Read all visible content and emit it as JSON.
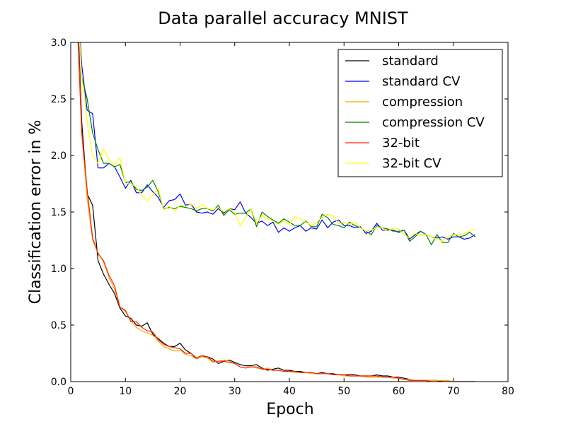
{
  "chart_data": {
    "type": "line",
    "title": "Data parallel accuracy MNIST",
    "xlabel": "Epoch",
    "ylabel": "Classification error in %",
    "xlim": [
      0,
      80
    ],
    "ylim": [
      0.0,
      3.0
    ],
    "xticks": [
      "0",
      "10",
      "20",
      "30",
      "40",
      "50",
      "60",
      "70",
      "80"
    ],
    "yticks": [
      "0.0",
      "0.5",
      "1.0",
      "1.5",
      "2.0",
      "2.5",
      "3.0"
    ],
    "grid": false,
    "legend_position": "top-right",
    "x": [
      1,
      2,
      3,
      4,
      5,
      6,
      7,
      8,
      9,
      10,
      11,
      12,
      13,
      14,
      15,
      16,
      17,
      18,
      19,
      20,
      21,
      22,
      23,
      24,
      25,
      26,
      27,
      28,
      29,
      30,
      31,
      32,
      33,
      34,
      35,
      36,
      37,
      38,
      39,
      40,
      41,
      42,
      43,
      44,
      45,
      46,
      47,
      48,
      49,
      50,
      51,
      52,
      53,
      54,
      55,
      56,
      57,
      58,
      59,
      60,
      61,
      62,
      63,
      64,
      65,
      66,
      67,
      68,
      69,
      70,
      71,
      72,
      73,
      74
    ],
    "series": [
      {
        "name": "standard",
        "color": "#000000",
        "values": [
          3.6,
          2.3,
          1.66,
          1.56,
          1.07,
          0.95,
          0.86,
          0.78,
          0.65,
          0.58,
          0.56,
          0.5,
          0.49,
          0.52,
          0.42,
          0.38,
          0.34,
          0.31,
          0.31,
          0.34,
          0.28,
          0.25,
          0.2,
          0.22,
          0.22,
          0.2,
          0.16,
          0.18,
          0.19,
          0.17,
          0.15,
          0.14,
          0.14,
          0.15,
          0.12,
          0.1,
          0.11,
          0.12,
          0.1,
          0.1,
          0.09,
          0.09,
          0.08,
          0.08,
          0.07,
          0.08,
          0.07,
          0.07,
          0.06,
          0.06,
          0.06,
          0.06,
          0.05,
          0.05,
          0.05,
          0.06,
          0.05,
          0.05,
          0.04,
          0.04,
          0.03,
          0.02,
          0.01,
          0.01,
          0.01,
          0.01,
          0.01,
          0.0,
          0.0,
          0.0,
          0.0,
          0.0,
          0.0,
          0.0
        ]
      },
      {
        "name": "standard CV",
        "color": "#0000ff",
        "values": [
          3.6,
          2.8,
          2.4,
          2.37,
          1.89,
          1.89,
          1.93,
          1.9,
          1.81,
          1.71,
          1.78,
          1.67,
          1.67,
          1.74,
          1.68,
          1.63,
          1.54,
          1.6,
          1.61,
          1.66,
          1.56,
          1.57,
          1.5,
          1.49,
          1.5,
          1.48,
          1.53,
          1.49,
          1.53,
          1.52,
          1.59,
          1.49,
          1.45,
          1.4,
          1.42,
          1.38,
          1.41,
          1.32,
          1.36,
          1.33,
          1.36,
          1.38,
          1.33,
          1.36,
          1.35,
          1.43,
          1.36,
          1.41,
          1.43,
          1.38,
          1.38,
          1.36,
          1.37,
          1.31,
          1.33,
          1.4,
          1.34,
          1.34,
          1.34,
          1.32,
          1.34,
          1.26,
          1.3,
          1.33,
          1.3,
          1.28,
          1.27,
          1.28,
          1.26,
          1.28,
          1.28,
          1.26,
          1.27,
          1.3
        ]
      },
      {
        "name": "compression",
        "color": "#ffa500",
        "values": [
          3.5,
          2.2,
          1.62,
          1.25,
          1.14,
          1.06,
          0.92,
          0.82,
          0.66,
          0.62,
          0.54,
          0.48,
          0.45,
          0.43,
          0.41,
          0.36,
          0.31,
          0.29,
          0.27,
          0.28,
          0.24,
          0.23,
          0.2,
          0.22,
          0.21,
          0.17,
          0.18,
          0.19,
          0.18,
          0.16,
          0.13,
          0.12,
          0.13,
          0.12,
          0.11,
          0.12,
          0.1,
          0.1,
          0.09,
          0.09,
          0.08,
          0.08,
          0.08,
          0.07,
          0.07,
          0.07,
          0.07,
          0.06,
          0.06,
          0.05,
          0.05,
          0.05,
          0.05,
          0.04,
          0.04,
          0.04,
          0.04,
          0.04,
          0.03,
          0.03,
          0.02,
          0.02,
          0.01,
          0.01,
          0.01,
          0.01,
          0.01,
          0.01,
          0.01,
          0.0,
          0.0,
          0.0,
          0.0,
          0.0
        ]
      },
      {
        "name": "compression CV",
        "color": "#008000",
        "values": [
          3.6,
          2.7,
          2.5,
          2.2,
          2.05,
          1.93,
          1.93,
          1.9,
          1.92,
          1.76,
          1.77,
          1.7,
          1.69,
          1.72,
          1.78,
          1.68,
          1.53,
          1.54,
          1.53,
          1.55,
          1.54,
          1.53,
          1.51,
          1.53,
          1.53,
          1.51,
          1.56,
          1.47,
          1.52,
          1.48,
          1.49,
          1.49,
          1.53,
          1.37,
          1.5,
          1.46,
          1.43,
          1.4,
          1.44,
          1.41,
          1.38,
          1.38,
          1.42,
          1.37,
          1.37,
          1.48,
          1.45,
          1.39,
          1.38,
          1.36,
          1.41,
          1.38,
          1.36,
          1.33,
          1.3,
          1.38,
          1.36,
          1.35,
          1.33,
          1.33,
          1.34,
          1.24,
          1.28,
          1.33,
          1.3,
          1.21,
          1.3,
          1.23,
          1.23,
          1.31,
          1.28,
          1.29,
          1.32,
          1.28
        ]
      },
      {
        "name": "32-bit",
        "color": "#ff2200",
        "values": [
          3.4,
          2.2,
          1.7,
          1.27,
          1.13,
          1.07,
          0.94,
          0.85,
          0.66,
          0.63,
          0.53,
          0.53,
          0.48,
          0.45,
          0.44,
          0.37,
          0.33,
          0.31,
          0.3,
          0.29,
          0.25,
          0.25,
          0.21,
          0.23,
          0.22,
          0.18,
          0.18,
          0.18,
          0.17,
          0.16,
          0.13,
          0.12,
          0.13,
          0.13,
          0.11,
          0.11,
          0.1,
          0.1,
          0.09,
          0.09,
          0.09,
          0.08,
          0.08,
          0.08,
          0.07,
          0.07,
          0.07,
          0.06,
          0.06,
          0.06,
          0.05,
          0.05,
          0.05,
          0.05,
          0.05,
          0.05,
          0.04,
          0.04,
          0.04,
          0.03,
          0.02,
          0.01,
          0.01,
          0.01,
          0.01,
          0.0,
          0.0,
          0.0,
          0.0,
          0.0,
          0.0,
          0.0,
          0.0,
          0.0
        ]
      },
      {
        "name": "32-bit CV",
        "color": "#ffff00",
        "values": [
          3.6,
          2.7,
          2.3,
          2.0,
          1.93,
          2.06,
          1.96,
          1.92,
          1.98,
          1.75,
          1.75,
          1.72,
          1.65,
          1.6,
          1.65,
          1.71,
          1.52,
          1.55,
          1.51,
          1.56,
          1.55,
          1.57,
          1.53,
          1.57,
          1.53,
          1.52,
          1.54,
          1.5,
          1.53,
          1.5,
          1.38,
          1.45,
          1.53,
          1.4,
          1.47,
          1.44,
          1.42,
          1.39,
          1.42,
          1.39,
          1.46,
          1.44,
          1.41,
          1.38,
          1.41,
          1.45,
          1.48,
          1.47,
          1.4,
          1.41,
          1.39,
          1.41,
          1.36,
          1.33,
          1.34,
          1.36,
          1.36,
          1.33,
          1.36,
          1.35,
          1.3,
          1.27,
          1.31,
          1.3,
          1.3,
          1.28,
          1.26,
          1.24,
          1.28,
          1.3,
          1.3,
          1.31,
          1.33,
          1.35
        ]
      }
    ]
  }
}
